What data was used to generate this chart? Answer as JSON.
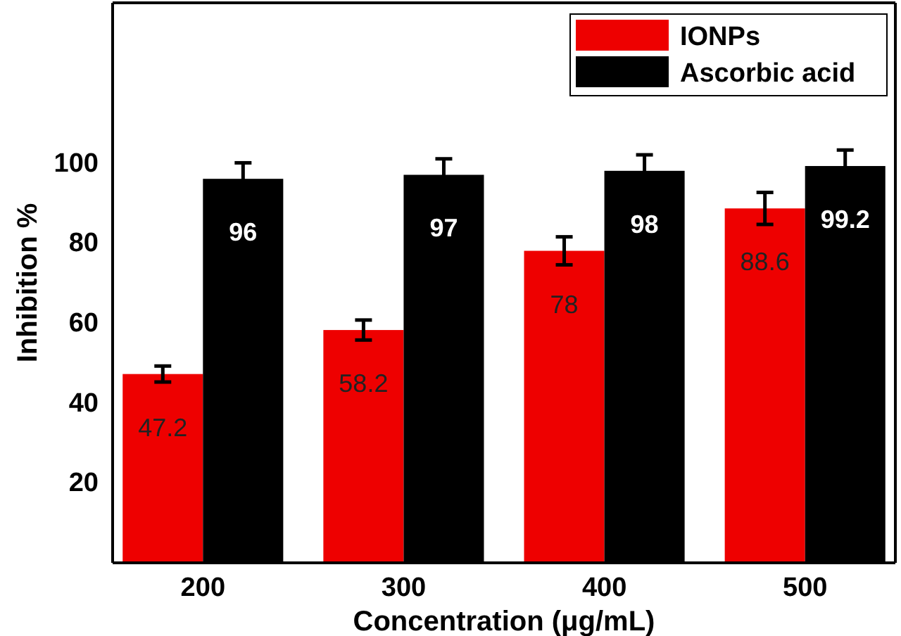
{
  "chart_data": {
    "type": "bar",
    "xlabel": "Concentration (μg/mL)",
    "ylabel": "Inhibition %",
    "categories": [
      "200",
      "300",
      "400",
      "500"
    ],
    "series": [
      {
        "name": "IONPs",
        "color": "#ee0000",
        "values": [
          47.2,
          58.2,
          78,
          88.6
        ],
        "errors": [
          2,
          2.5,
          3.5,
          4
        ]
      },
      {
        "name": "Ascorbic acid",
        "color": "#000000",
        "values": [
          96,
          97,
          98,
          99.2
        ],
        "errors": [
          4,
          4,
          4,
          4
        ]
      }
    ],
    "ylim": [
      0,
      140
    ],
    "yticks": [
      20,
      40,
      60,
      80,
      100
    ],
    "data_labels": true,
    "legend": "top right",
    "grid": false
  }
}
